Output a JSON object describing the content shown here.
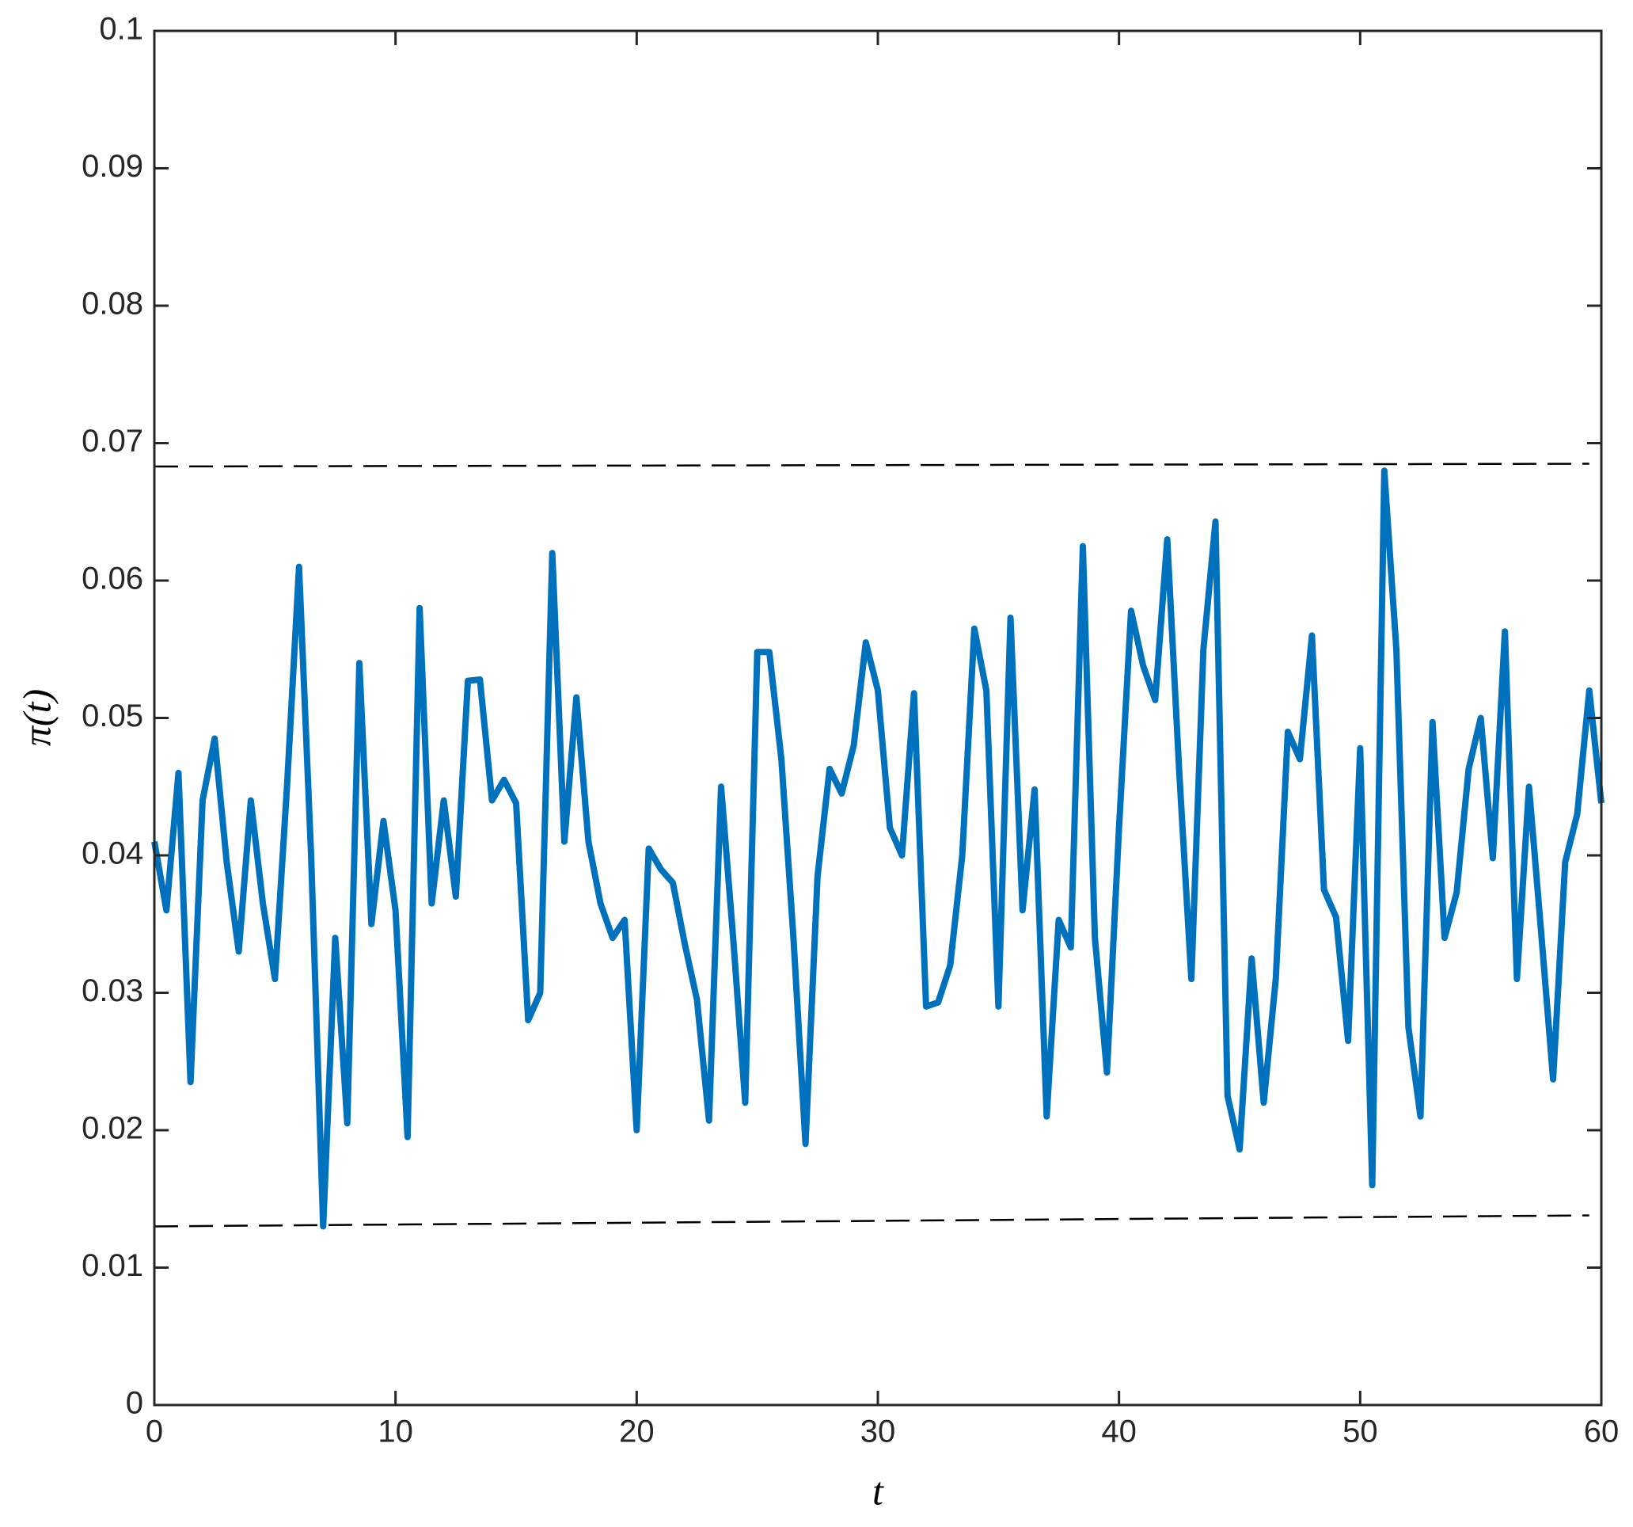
{
  "chart_data": {
    "type": "line",
    "xlabel": "t",
    "ylabel": "π(t)",
    "xlim": [
      0,
      60
    ],
    "ylim": [
      0,
      0.1
    ],
    "xticks": [
      0,
      10,
      20,
      30,
      40,
      50,
      60
    ],
    "yticks": [
      0,
      0.01,
      0.02,
      0.03,
      0.04,
      0.05,
      0.06,
      0.07,
      0.08,
      0.09,
      0.1
    ],
    "series": [
      {
        "color": "#0072bd",
        "dash": false,
        "x": [
          0,
          0.5,
          1,
          1.5,
          2,
          2.5,
          3,
          3.5,
          4,
          4.5,
          5,
          5.5,
          6,
          6.5,
          7,
          7.5,
          8,
          8.5,
          9,
          9.5,
          10,
          10.5,
          11,
          11.5,
          12,
          12.5,
          13,
          13.5,
          14,
          14.5,
          15,
          15.5,
          16,
          16.5,
          17,
          17.5,
          18,
          18.5,
          19,
          19.5,
          20,
          20.5,
          21,
          21.5,
          22,
          22.5,
          23,
          23.5,
          24,
          24.5,
          25,
          25.5,
          26,
          26.5,
          27,
          27.5,
          28,
          28.5,
          29,
          29.5,
          30,
          30.5,
          31,
          31.5,
          32,
          32.5,
          33,
          33.5,
          34,
          34.5,
          35,
          35.5,
          36,
          36.5,
          37,
          37.5,
          38,
          38.5,
          39,
          39.5,
          40,
          40.5,
          41,
          41.5,
          42,
          42.5,
          43,
          43.5,
          44,
          44.5,
          45,
          45.5,
          46,
          46.5,
          47,
          47.5,
          48,
          48.5,
          49,
          49.5,
          50,
          50.5,
          51,
          51.5,
          52,
          52.5,
          53,
          53.5,
          54,
          54.5,
          55,
          55.5,
          56,
          56.5,
          57,
          57.5,
          58,
          58.5,
          59,
          59.5,
          60
        ],
        "values": [
          0.041,
          0.036,
          0.046,
          0.0235,
          0.044,
          0.0485,
          0.0395,
          0.033,
          0.044,
          0.0365,
          0.031,
          0.045,
          0.061,
          0.04,
          0.013,
          0.034,
          0.0205,
          0.054,
          0.035,
          0.0425,
          0.036,
          0.0195,
          0.058,
          0.0365,
          0.044,
          0.037,
          0.0527,
          0.0528,
          0.044,
          0.0455,
          0.0438,
          0.028,
          0.03,
          0.062,
          0.041,
          0.0515,
          0.041,
          0.0365,
          0.034,
          0.0353,
          0.02,
          0.0405,
          0.039,
          0.038,
          0.0335,
          0.0295,
          0.0207,
          0.045,
          0.034,
          0.022,
          0.0548,
          0.0548,
          0.047,
          0.034,
          0.019,
          0.0385,
          0.0463,
          0.0445,
          0.048,
          0.0555,
          0.052,
          0.042,
          0.04,
          0.0518,
          0.029,
          0.0293,
          0.032,
          0.04,
          0.0565,
          0.052,
          0.029,
          0.0573,
          0.036,
          0.0448,
          0.021,
          0.0353,
          0.0333,
          0.0625,
          0.034,
          0.0242,
          0.042,
          0.0578,
          0.0538,
          0.0513,
          0.063,
          0.046,
          0.031,
          0.055,
          0.0643,
          0.0225,
          0.0186,
          0.0325,
          0.022,
          0.031,
          0.049,
          0.047,
          0.056,
          0.0375,
          0.0355,
          0.0265,
          0.0478,
          0.016,
          0.068,
          0.055,
          0.0275,
          0.021,
          0.0497,
          0.034,
          0.0373,
          0.0463,
          0.05,
          0.0398,
          0.0563,
          0.031,
          0.045,
          0.0345,
          0.0237,
          0.0395,
          0.043,
          0.052,
          0.0438
        ]
      },
      {
        "color": "#000000",
        "dash": true,
        "x": [
          0,
          59.5
        ],
        "values": [
          0.0683,
          0.0685
        ]
      },
      {
        "color": "#000000",
        "dash": true,
        "x": [
          0,
          59.5
        ],
        "values": [
          0.013,
          0.0138
        ]
      }
    ]
  }
}
